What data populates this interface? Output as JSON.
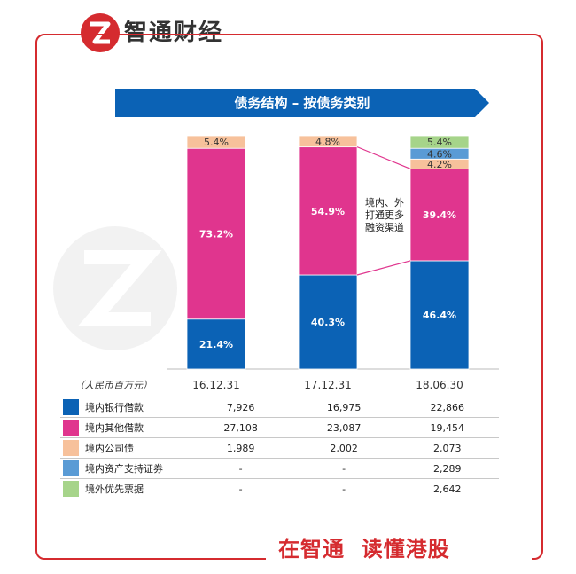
{
  "brand": {
    "name": "智通财经",
    "slogan": "在智通  读懂港股",
    "accent": "#d52b2f"
  },
  "chart_data": {
    "type": "bar",
    "stacked": true,
    "percent": true,
    "title": "债务结构 – 按债务类别",
    "unit_label": "（人民币百万元）",
    "categories": [
      "16.12.31",
      "17.12.31",
      "18.06.30"
    ],
    "series": [
      {
        "name": "境内银行借款",
        "color": "#0b62b5",
        "values": [
          7926,
          16975,
          22866
        ],
        "value_labels": [
          "7,926",
          "16,975",
          "22,866"
        ],
        "percent_labels": [
          "21.4%",
          "40.3%",
          "46.4%"
        ],
        "pct": [
          21.4,
          40.3,
          46.4
        ]
      },
      {
        "name": "境内其他借款",
        "color": "#e0358e",
        "values": [
          27108,
          23087,
          19454
        ],
        "value_labels": [
          "27,108",
          "23,087",
          "19,454"
        ],
        "percent_labels": [
          "73.2%",
          "54.9%",
          "39.4%"
        ],
        "pct": [
          73.2,
          54.9,
          39.4
        ]
      },
      {
        "name": "境内公司债",
        "color": "#f7c19b",
        "values": [
          1989,
          2002,
          2073
        ],
        "value_labels": [
          "1,989",
          "2,002",
          "2,073"
        ],
        "percent_labels": [
          "5.4%",
          "4.8%",
          "4.2%"
        ],
        "pct": [
          5.4,
          4.8,
          4.2
        ]
      },
      {
        "name": "境内资产支持证券",
        "color": "#5a9bd5",
        "values": [
          null,
          null,
          2289
        ],
        "value_labels": [
          "-",
          "-",
          "2,289"
        ],
        "percent_labels": [
          "",
          "",
          "4.6%"
        ],
        "pct": [
          0,
          0,
          4.6
        ]
      },
      {
        "name": "境外优先票据",
        "color": "#a6d48a",
        "values": [
          null,
          null,
          2642
        ],
        "value_labels": [
          "-",
          "-",
          "2,642"
        ],
        "percent_labels": [
          "",
          "",
          "5.4%"
        ],
        "pct": [
          0,
          0,
          5.4
        ]
      }
    ],
    "annotation": "境内、外\n打通更多\n融资渠道"
  }
}
